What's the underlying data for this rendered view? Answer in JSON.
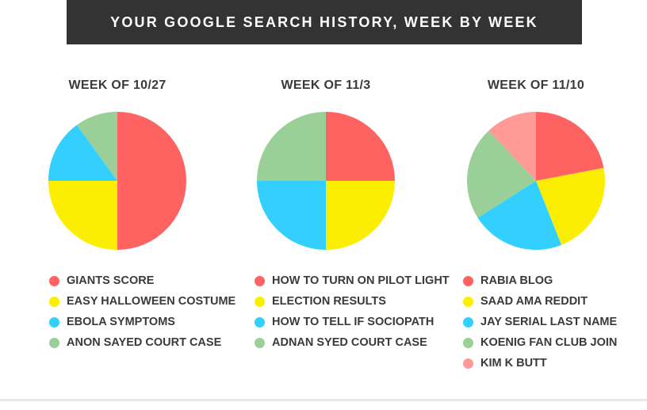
{
  "title": "YOUR GOOGLE SEARCH HISTORY, WEEK BY WEEK",
  "colors": {
    "red": "#ff6361",
    "yellow": "#fcee00",
    "blue": "#33cfff",
    "green": "#9bcf98",
    "pink": "#ff9a96"
  },
  "chart_data": [
    {
      "type": "pie",
      "title": "WEEK OF 10/27",
      "slices": [
        {
          "label": "GIANTS SCORE",
          "value": 50,
          "color": "#ff6361"
        },
        {
          "label": "EASY HALLOWEEN COSTUME",
          "value": 25,
          "color": "#fcee00"
        },
        {
          "label": "EBOLA SYMPTOMS",
          "value": 15,
          "color": "#33cfff"
        },
        {
          "label": "ANON SAYED COURT CASE",
          "value": 10,
          "color": "#9bcf98"
        }
      ]
    },
    {
      "type": "pie",
      "title": "WEEK OF 11/3",
      "slices": [
        {
          "label": "HOW TO TURN ON PILOT LIGHT",
          "value": 25,
          "color": "#ff6361"
        },
        {
          "label": "ELECTION RESULTS",
          "value": 25,
          "color": "#fcee00"
        },
        {
          "label": "HOW TO TELL IF SOCIOPATH",
          "value": 25,
          "color": "#33cfff"
        },
        {
          "label": "ADNAN SYED COURT CASE",
          "value": 25,
          "color": "#9bcf98"
        }
      ]
    },
    {
      "type": "pie",
      "title": "WEEK OF 11/10",
      "slices": [
        {
          "label": "RABIA BLOG",
          "value": 22,
          "color": "#ff6361"
        },
        {
          "label": "SAAD AMA REDDIT",
          "value": 22,
          "color": "#fcee00"
        },
        {
          "label": "JAY SERIAL LAST NAME",
          "value": 22,
          "color": "#33cfff"
        },
        {
          "label": "KOENIG FAN CLUB JOIN",
          "value": 22,
          "color": "#9bcf98"
        },
        {
          "label": "KIM K BUTT",
          "value": 12,
          "color": "#ff9a96"
        }
      ]
    }
  ]
}
